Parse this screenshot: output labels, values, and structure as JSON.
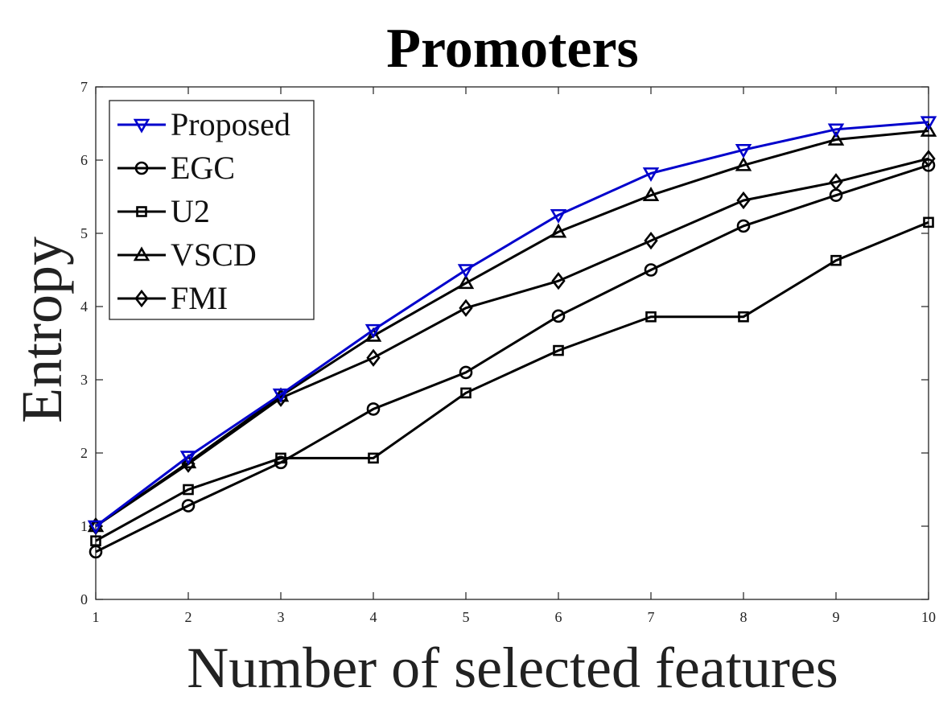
{
  "chart_data": {
    "type": "line",
    "title": "Promoters",
    "xlabel": "Number of selected features",
    "ylabel": "Entropy",
    "x": [
      1,
      2,
      3,
      4,
      5,
      6,
      7,
      8,
      9,
      10
    ],
    "xlim": [
      1,
      10
    ],
    "ylim": [
      0,
      7
    ],
    "xticks": [
      "1",
      "2",
      "3",
      "4",
      "5",
      "6",
      "7",
      "8",
      "9",
      "10"
    ],
    "yticks": [
      "0",
      "1",
      "2",
      "3",
      "4",
      "5",
      "6",
      "7"
    ],
    "grid": false,
    "legend_position": "top-left",
    "series": [
      {
        "name": "Proposed",
        "color": "#0000cc",
        "marker": "triangle-down",
        "values": [
          1.0,
          1.95,
          2.8,
          3.68,
          4.5,
          5.25,
          5.82,
          6.14,
          6.42,
          6.52
        ]
      },
      {
        "name": "EGC",
        "color": "#000000",
        "marker": "circle",
        "values": [
          0.65,
          1.28,
          1.87,
          2.6,
          3.1,
          3.87,
          4.5,
          5.1,
          5.52,
          5.93
        ]
      },
      {
        "name": "U2",
        "color": "#000000",
        "marker": "square",
        "values": [
          0.8,
          1.5,
          1.93,
          1.93,
          2.82,
          3.4,
          3.86,
          3.86,
          4.63,
          5.15
        ]
      },
      {
        "name": "VSCD",
        "color": "#000000",
        "marker": "triangle-up",
        "values": [
          1.0,
          1.87,
          2.78,
          3.6,
          4.32,
          5.02,
          5.52,
          5.93,
          6.28,
          6.4
        ]
      },
      {
        "name": "FMI",
        "color": "#000000",
        "marker": "diamond",
        "values": [
          1.0,
          1.85,
          2.75,
          3.3,
          3.98,
          4.35,
          4.9,
          5.45,
          5.7,
          6.02
        ]
      }
    ]
  }
}
